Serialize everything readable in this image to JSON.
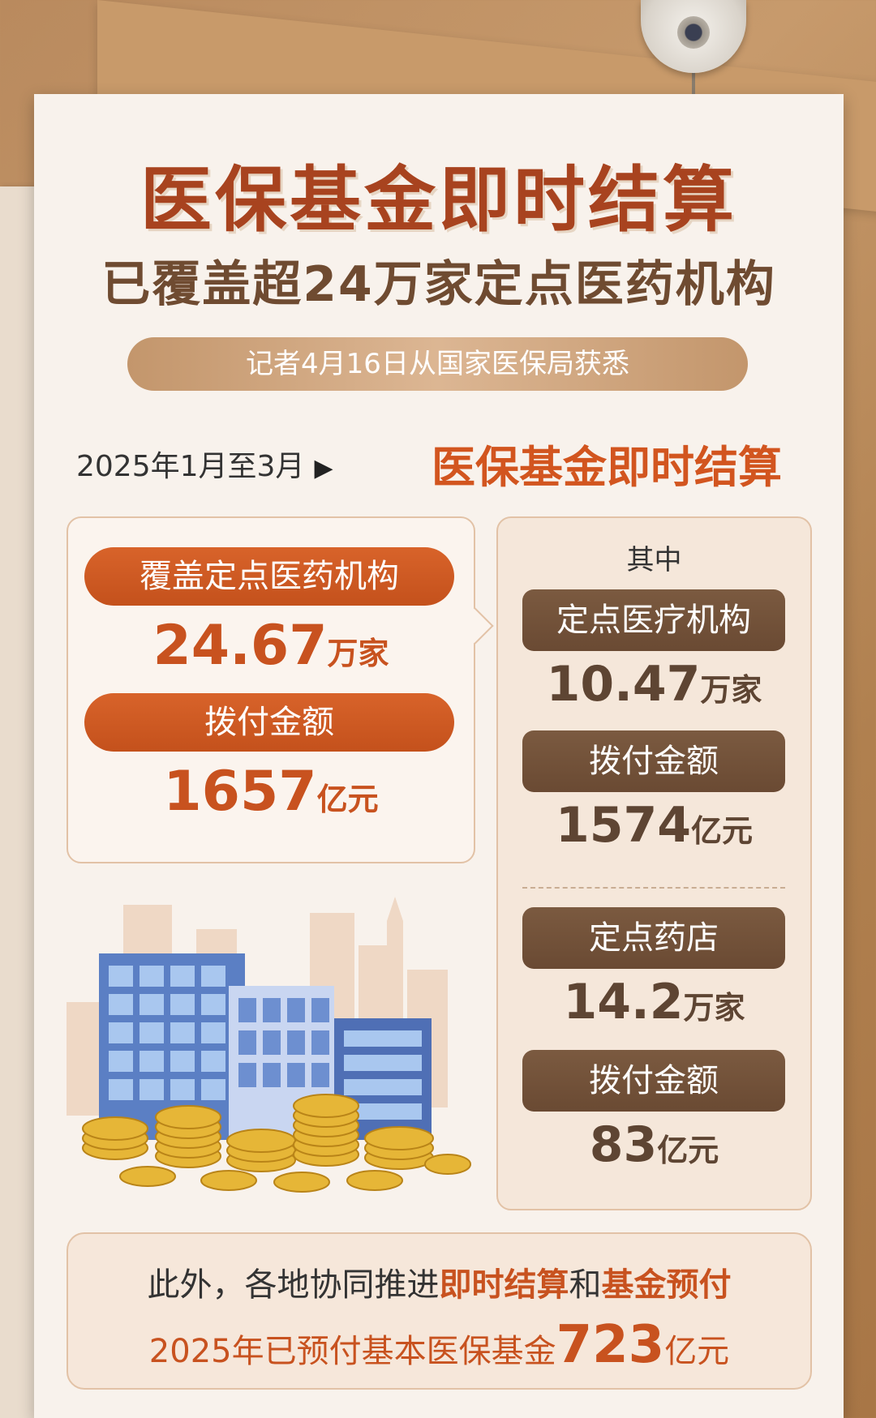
{
  "title": "医保基金即时结算",
  "subtitle": "已覆盖超24万家定点医药机构",
  "source": "记者4月16日从国家医保局获悉",
  "period": "2025年1月至3月",
  "section_title": "医保基金即时结算",
  "left": {
    "label1": "覆盖定点医药机构",
    "value1": "24.67",
    "unit1": "万家",
    "label2": "拨付金额",
    "value2": "1657",
    "unit2": "亿元"
  },
  "right": {
    "header": "其中",
    "medical": {
      "label": "定点医疗机构",
      "value": "10.47",
      "unit": "万家",
      "pay_label": "拨付金额",
      "pay_value": "1574",
      "pay_unit": "亿元"
    },
    "pharmacy": {
      "label": "定点药店",
      "value": "14.2",
      "unit": "万家",
      "pay_label": "拨付金额",
      "pay_value": "83",
      "pay_unit": "亿元"
    }
  },
  "bottom": {
    "line1_prefix": "此外，各地协同推进",
    "line1_hl1": "即时结算",
    "line1_mid": "和",
    "line1_hl2": "基金预付",
    "line2_prefix": "2025年已预付基本医保基金",
    "line2_value": "723",
    "line2_unit": "亿元"
  },
  "colors": {
    "accent_orange": "#c8521f",
    "accent_brown": "#6a4a33",
    "title_red": "#a8431f"
  }
}
